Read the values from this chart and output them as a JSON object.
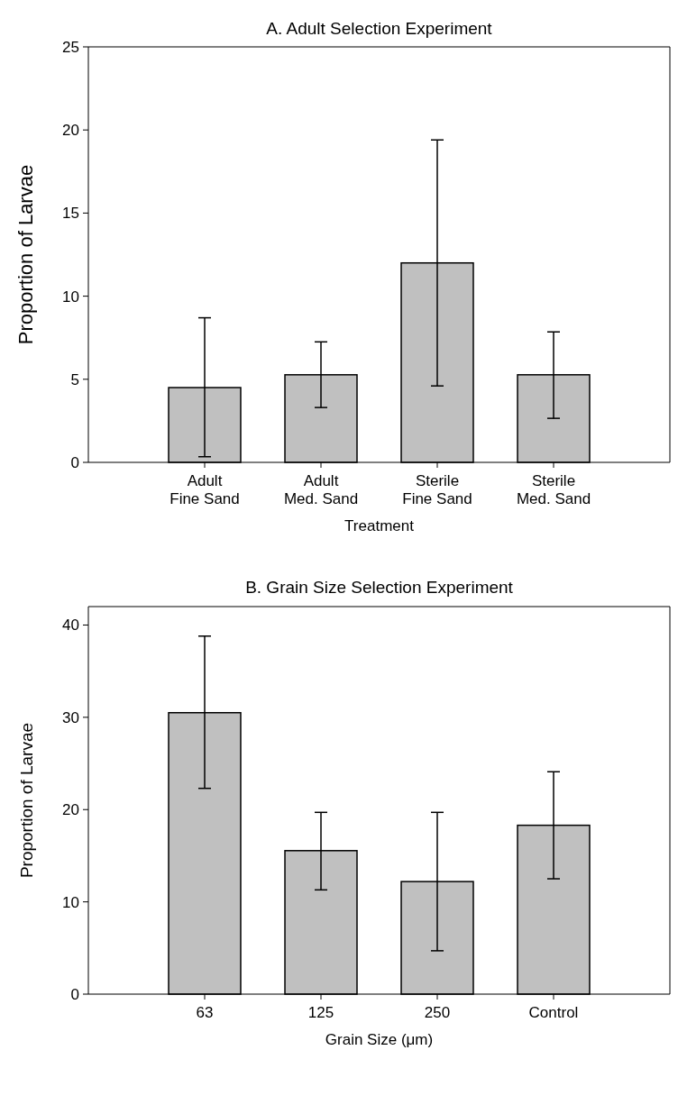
{
  "chart_data": [
    {
      "type": "bar",
      "title": "A.  Adult Selection Experiment",
      "xlabel": "Treatment",
      "ylabel": "Proportion of Larvae",
      "categories": [
        "Adult\nFine Sand",
        "Adult\nMed. Sand",
        "Sterile\nFine Sand",
        "Sterile\nMed. Sand"
      ],
      "values": [
        4.5,
        5.27,
        12.0,
        5.27
      ],
      "errors": [
        [
          0.34,
          8.7
        ],
        [
          3.3,
          7.25
        ],
        [
          4.6,
          19.4
        ],
        [
          2.65,
          7.85
        ]
      ],
      "color": "#c0c0c0",
      "ylim": [
        0,
        25
      ],
      "yticks": [
        0,
        5,
        10,
        15,
        20,
        25
      ],
      "grid": false
    },
    {
      "type": "bar",
      "title": "B. Grain Size Selection Experiment",
      "xlabel": "Grain Size (μm)",
      "ylabel": "Proportion of Larvae",
      "categories": [
        "63",
        "125",
        "250",
        "Control"
      ],
      "values": [
        30.5,
        15.55,
        12.2,
        18.3
      ],
      "errors": [
        [
          22.3,
          38.8
        ],
        [
          11.3,
          19.7
        ],
        [
          4.7,
          19.7
        ],
        [
          12.5,
          24.1
        ]
      ],
      "color": "#c0c0c0",
      "ylim": [
        0,
        42
      ],
      "yticks": [
        0,
        10,
        20,
        30,
        40
      ],
      "grid": false
    }
  ]
}
